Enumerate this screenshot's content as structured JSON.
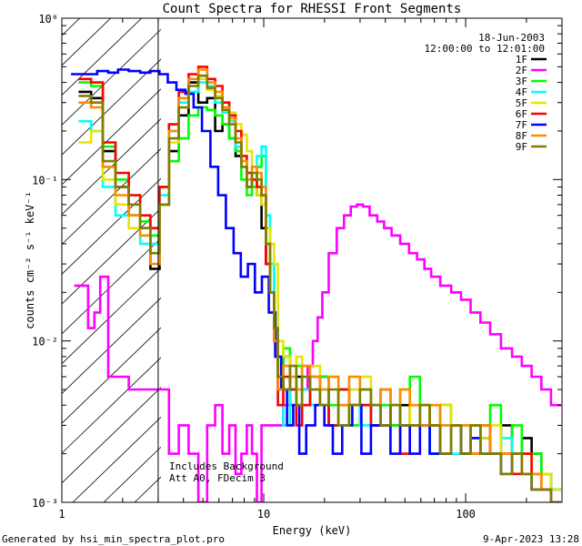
{
  "chart_data": {
    "type": "line",
    "title": "Count Spectra for RHESSI Front Segments",
    "xlabel": "Energy (keV)",
    "ylabel": "counts cm⁻² s⁻¹ keV⁻¹",
    "xscale": "log",
    "yscale": "log",
    "xlim": [
      1,
      300
    ],
    "ylim": [
      0.001,
      1
    ],
    "x_ticks": [
      {
        "value": 1,
        "label": "1"
      },
      {
        "value": 10,
        "label": "10"
      },
      {
        "value": 100,
        "label": "100"
      }
    ],
    "y_ticks": [
      {
        "value": 1,
        "label": "10⁰"
      },
      {
        "value": 0.1,
        "label": "10⁻¹"
      },
      {
        "value": 0.01,
        "label": "10⁻²"
      },
      {
        "value": 0.001,
        "label": "10⁻³"
      }
    ],
    "date": "18-Jun-2003",
    "time_range": "12:00:00 to 12:01:00",
    "annotations": [
      "Includes Background",
      "Att A0, FDecim 3"
    ],
    "footer_left": "Generated by hsi_min_spectra_plot.pro",
    "footer_right": "9-Apr-2023 13:28",
    "shaded_region_xmax": 3,
    "legend_position": "top-right",
    "series": [
      {
        "name": "1F",
        "color": "#000000",
        "x": [
          1.3,
          1.5,
          1.7,
          2.0,
          2.3,
          2.6,
          2.9,
          3.2,
          3.6,
          4.0,
          4.5,
          5.0,
          5.5,
          6.0,
          6.5,
          7.0,
          7.5,
          8.0,
          8.5,
          9.0,
          9.5,
          10.0,
          10.5,
          11.0,
          11.5,
          12.0,
          13,
          14,
          15,
          16,
          18,
          20,
          22,
          25,
          28,
          32,
          36,
          40,
          45,
          50,
          56,
          63,
          70,
          80,
          90,
          100,
          112,
          125,
          140,
          160,
          180,
          200,
          225,
          250,
          280
        ],
        "y": [
          0.35,
          0.32,
          0.15,
          0.09,
          0.06,
          0.05,
          0.028,
          0.07,
          0.15,
          0.25,
          0.4,
          0.3,
          0.32,
          0.2,
          0.22,
          0.18,
          0.14,
          0.12,
          0.09,
          0.1,
          0.08,
          0.05,
          0.03,
          0.02,
          0.012,
          0.005,
          0.008,
          0.004,
          0.006,
          0.005,
          0.004,
          0.006,
          0.003,
          0.005,
          0.004,
          0.004,
          0.003,
          0.005,
          0.003,
          0.004,
          0.003,
          0.003,
          0.002,
          0.004,
          0.003,
          0.002,
          0.003,
          0.0025,
          0.002,
          0.003,
          0.002,
          0.0025,
          0.002,
          0.0015,
          0.0012
        ]
      },
      {
        "name": "2F",
        "color": "#ff00ff",
        "x": [
          1.2,
          1.3,
          1.4,
          1.5,
          1.6,
          1.8,
          2.0,
          2.3,
          2.6,
          2.9,
          3.2,
          3.6,
          4.0,
          4.5,
          5.0,
          5.5,
          6.0,
          6.5,
          7.0,
          7.5,
          8.0,
          8.5,
          9.0,
          9.5,
          10.0,
          11,
          12,
          13,
          14,
          15,
          16,
          17,
          18,
          19,
          20,
          22,
          24,
          26,
          28,
          30,
          32,
          35,
          38,
          41,
          45,
          50,
          55,
          60,
          65,
          70,
          80,
          90,
          100,
          112,
          125,
          140,
          160,
          180,
          200,
          225,
          250,
          280
        ],
        "y": [
          0.022,
          0.022,
          0.012,
          0.015,
          0.025,
          0.006,
          0.006,
          0.005,
          0.005,
          0.005,
          0.005,
          0.002,
          0.003,
          0.002,
          0.001,
          0.003,
          0.004,
          0.002,
          0.003,
          0.0015,
          0.002,
          0.003,
          0.002,
          0.001,
          0.003,
          0.003,
          0.003,
          0.004,
          0.004,
          0.004,
          0.005,
          0.007,
          0.01,
          0.014,
          0.02,
          0.035,
          0.05,
          0.06,
          0.068,
          0.07,
          0.068,
          0.06,
          0.055,
          0.05,
          0.045,
          0.04,
          0.035,
          0.032,
          0.028,
          0.025,
          0.022,
          0.02,
          0.018,
          0.015,
          0.013,
          0.011,
          0.009,
          0.008,
          0.007,
          0.006,
          0.005,
          0.004
        ]
      },
      {
        "name": "3F",
        "color": "#00ff00",
        "x": [
          1.3,
          1.5,
          1.7,
          2.0,
          2.3,
          2.6,
          2.9,
          3.2,
          3.6,
          4.0,
          4.5,
          5.0,
          5.5,
          6.0,
          6.5,
          7.0,
          7.5,
          8.0,
          8.5,
          9.0,
          9.5,
          10.0,
          10.5,
          11.0,
          11.5,
          12.0,
          13,
          14,
          15,
          16,
          18,
          20,
          22,
          25,
          28,
          32,
          36,
          40,
          45,
          50,
          56,
          63,
          70,
          80,
          90,
          100,
          112,
          125,
          140,
          160,
          180,
          200,
          225,
          250,
          280
        ],
        "y": [
          0.4,
          0.38,
          0.16,
          0.1,
          0.08,
          0.055,
          0.045,
          0.09,
          0.13,
          0.18,
          0.25,
          0.28,
          0.27,
          0.25,
          0.22,
          0.18,
          0.15,
          0.1,
          0.08,
          0.09,
          0.12,
          0.14,
          0.05,
          0.03,
          0.015,
          0.006,
          0.009,
          0.005,
          0.007,
          0.004,
          0.005,
          0.006,
          0.004,
          0.005,
          0.003,
          0.005,
          0.004,
          0.004,
          0.003,
          0.005,
          0.006,
          0.004,
          0.003,
          0.004,
          0.003,
          0.003,
          0.002,
          0.003,
          0.004,
          0.002,
          0.003,
          0.002,
          0.002,
          0.0015,
          0.0012
        ]
      },
      {
        "name": "4F",
        "color": "#00ffff",
        "x": [
          1.3,
          1.5,
          1.7,
          2.0,
          2.3,
          2.6,
          2.9,
          3.2,
          3.6,
          4.0,
          4.5,
          5.0,
          5.5,
          6.0,
          6.5,
          7.0,
          7.5,
          8.0,
          8.5,
          9.0,
          9.5,
          10.0,
          10.5,
          11.0,
          11.5,
          12.0,
          13,
          14,
          15,
          16,
          18,
          20,
          22,
          25,
          28,
          32,
          36,
          40,
          45,
          50,
          56,
          63,
          70,
          80,
          90,
          100,
          112,
          125,
          140,
          160,
          180,
          200,
          225,
          250,
          280
        ],
        "y": [
          0.23,
          0.2,
          0.09,
          0.06,
          0.06,
          0.04,
          0.04,
          0.08,
          0.2,
          0.3,
          0.35,
          0.4,
          0.38,
          0.3,
          0.26,
          0.23,
          0.16,
          0.12,
          0.1,
          0.12,
          0.14,
          0.16,
          0.06,
          0.03,
          0.015,
          0.004,
          0.003,
          0.005,
          0.004,
          0.005,
          0.004,
          0.005,
          0.003,
          0.004,
          0.005,
          0.003,
          0.004,
          0.003,
          0.004,
          0.003,
          0.003,
          0.004,
          0.002,
          0.003,
          0.002,
          0.003,
          0.0025,
          0.002,
          0.002,
          0.0025,
          0.002,
          0.002,
          0.0015,
          0.0015,
          0.0012
        ]
      },
      {
        "name": "5F",
        "color": "#e6e600",
        "x": [
          1.3,
          1.5,
          1.7,
          2.0,
          2.3,
          2.6,
          2.9,
          3.2,
          3.6,
          4.0,
          4.5,
          5.0,
          5.5,
          6.0,
          6.5,
          7.0,
          7.5,
          8.0,
          8.5,
          9.0,
          9.5,
          10.0,
          10.5,
          11.0,
          11.5,
          12.0,
          13,
          14,
          15,
          16,
          18,
          20,
          22,
          25,
          28,
          32,
          36,
          40,
          45,
          50,
          56,
          63,
          70,
          80,
          90,
          100,
          112,
          125,
          140,
          160,
          180,
          200,
          225,
          250,
          280
        ],
        "y": [
          0.17,
          0.2,
          0.1,
          0.07,
          0.05,
          0.05,
          0.035,
          0.07,
          0.17,
          0.28,
          0.38,
          0.42,
          0.36,
          0.33,
          0.3,
          0.26,
          0.22,
          0.19,
          0.15,
          0.1,
          0.08,
          0.07,
          0.05,
          0.04,
          0.03,
          0.01,
          0.008,
          0.006,
          0.008,
          0.006,
          0.007,
          0.005,
          0.006,
          0.004,
          0.005,
          0.006,
          0.004,
          0.005,
          0.004,
          0.005,
          0.003,
          0.004,
          0.003,
          0.004,
          0.003,
          0.003,
          0.003,
          0.0025,
          0.003,
          0.002,
          0.002,
          0.002,
          0.0015,
          0.0015,
          0.0012
        ]
      },
      {
        "name": "6F",
        "color": "#ff0000",
        "x": [
          1.3,
          1.5,
          1.7,
          2.0,
          2.3,
          2.6,
          2.9,
          3.2,
          3.6,
          4.0,
          4.5,
          5.0,
          5.5,
          6.0,
          6.5,
          7.0,
          7.5,
          8.0,
          8.5,
          9.0,
          9.5,
          10.0,
          10.5,
          11.0,
          11.5,
          12.0,
          13,
          14,
          15,
          16,
          18,
          20,
          22,
          25,
          28,
          32,
          36,
          40,
          45,
          50,
          56,
          63,
          70,
          80,
          90,
          100,
          112,
          125,
          140,
          160,
          180,
          200,
          225,
          250,
          280
        ],
        "y": [
          0.42,
          0.4,
          0.17,
          0.11,
          0.08,
          0.06,
          0.05,
          0.09,
          0.22,
          0.35,
          0.45,
          0.5,
          0.42,
          0.38,
          0.3,
          0.25,
          0.2,
          0.14,
          0.11,
          0.1,
          0.09,
          0.08,
          0.03,
          0.02,
          0.01,
          0.004,
          0.006,
          0.005,
          0.003,
          0.004,
          0.006,
          0.004,
          0.003,
          0.005,
          0.004,
          0.004,
          0.003,
          0.003,
          0.004,
          0.002,
          0.003,
          0.004,
          0.003,
          0.002,
          0.003,
          0.002,
          0.002,
          0.003,
          0.002,
          0.002,
          0.0015,
          0.002,
          0.0015,
          0.0012,
          0.001
        ]
      },
      {
        "name": "7F",
        "color": "#0000ff",
        "x": [
          1.2,
          1.4,
          1.6,
          1.8,
          2.0,
          2.3,
          2.6,
          2.9,
          3.2,
          3.5,
          3.9,
          4.3,
          4.7,
          5.2,
          5.7,
          6.2,
          6.8,
          7.4,
          8.0,
          8.7,
          9.4,
          10.2,
          11.0,
          11.8,
          12.6,
          13.5,
          14.5,
          15.5,
          17,
          19,
          21,
          23,
          26,
          29,
          32,
          36,
          40,
          45,
          50,
          56,
          63,
          70,
          80,
          90,
          100,
          112,
          125,
          140,
          160,
          180,
          200,
          225,
          250,
          280
        ],
        "y": [
          0.45,
          0.45,
          0.47,
          0.46,
          0.48,
          0.47,
          0.46,
          0.47,
          0.45,
          0.4,
          0.36,
          0.34,
          0.28,
          0.2,
          0.12,
          0.08,
          0.05,
          0.035,
          0.025,
          0.03,
          0.02,
          0.025,
          0.015,
          0.008,
          0.005,
          0.003,
          0.004,
          0.002,
          0.003,
          0.004,
          0.003,
          0.002,
          0.003,
          0.004,
          0.002,
          0.003,
          0.003,
          0.002,
          0.003,
          0.002,
          0.003,
          0.002,
          0.002,
          0.003,
          0.002,
          0.0025,
          0.002,
          0.002,
          0.0015,
          0.002,
          0.0015,
          0.0012,
          0.0012,
          0.001
        ]
      },
      {
        "name": "8F",
        "color": "#ff8c00",
        "x": [
          1.3,
          1.5,
          1.7,
          2.0,
          2.3,
          2.6,
          2.9,
          3.2,
          3.6,
          4.0,
          4.5,
          5.0,
          5.5,
          6.0,
          6.5,
          7.0,
          7.5,
          8.0,
          8.5,
          9.0,
          9.5,
          10.0,
          10.5,
          11.0,
          11.5,
          12.0,
          13,
          14,
          15,
          16,
          18,
          20,
          22,
          25,
          28,
          32,
          36,
          40,
          45,
          50,
          56,
          63,
          70,
          80,
          90,
          100,
          112,
          125,
          140,
          160,
          180,
          200,
          225,
          250,
          280
        ],
        "y": [
          0.3,
          0.28,
          0.12,
          0.08,
          0.06,
          0.045,
          0.03,
          0.07,
          0.2,
          0.32,
          0.42,
          0.48,
          0.4,
          0.35,
          0.28,
          0.24,
          0.18,
          0.13,
          0.1,
          0.12,
          0.11,
          0.09,
          0.04,
          0.02,
          0.01,
          0.005,
          0.007,
          0.006,
          0.005,
          0.007,
          0.006,
          0.005,
          0.006,
          0.004,
          0.006,
          0.005,
          0.004,
          0.005,
          0.004,
          0.005,
          0.004,
          0.003,
          0.004,
          0.003,
          0.003,
          0.003,
          0.002,
          0.003,
          0.002,
          0.002,
          0.002,
          0.0015,
          0.0015,
          0.0012,
          0.001
        ]
      },
      {
        "name": "9F",
        "color": "#7f7f00",
        "x": [
          1.3,
          1.5,
          1.7,
          2.0,
          2.3,
          2.6,
          2.9,
          3.2,
          3.6,
          4.0,
          4.5,
          5.0,
          5.5,
          6.0,
          6.5,
          7.0,
          7.5,
          8.0,
          8.5,
          9.0,
          9.5,
          10.0,
          10.5,
          11.0,
          11.5,
          12.0,
          13,
          14,
          15,
          16,
          18,
          20,
          22,
          25,
          28,
          32,
          36,
          40,
          45,
          50,
          56,
          63,
          70,
          80,
          90,
          100,
          112,
          125,
          140,
          160,
          180,
          200,
          225,
          250,
          280
        ],
        "y": [
          0.33,
          0.3,
          0.13,
          0.09,
          0.07,
          0.05,
          0.035,
          0.07,
          0.18,
          0.28,
          0.38,
          0.44,
          0.37,
          0.32,
          0.27,
          0.22,
          0.17,
          0.12,
          0.09,
          0.11,
          0.1,
          0.08,
          0.04,
          0.02,
          0.012,
          0.006,
          0.005,
          0.007,
          0.004,
          0.006,
          0.005,
          0.004,
          0.005,
          0.003,
          0.004,
          0.005,
          0.004,
          0.003,
          0.004,
          0.003,
          0.003,
          0.004,
          0.003,
          0.002,
          0.003,
          0.002,
          0.003,
          0.002,
          0.002,
          0.0015,
          0.002,
          0.0015,
          0.0012,
          0.0012,
          0.001
        ]
      }
    ]
  }
}
